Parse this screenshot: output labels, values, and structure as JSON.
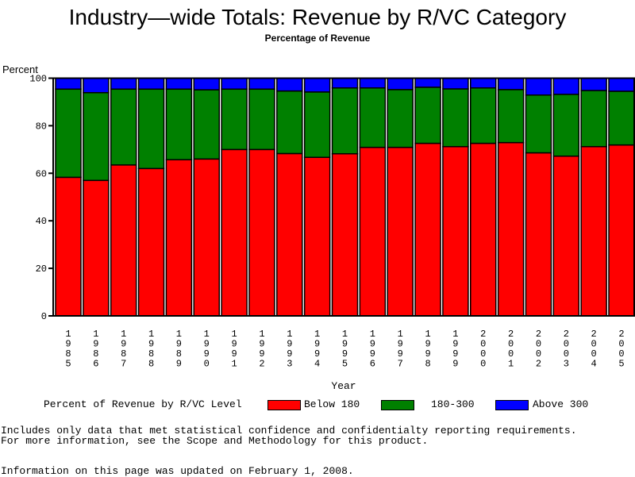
{
  "chart_data": {
    "type": "bar",
    "stacked": true,
    "title": "Industry—wide Totals: Revenue by R/VC Category",
    "subtitle": "Percentage of Revenue",
    "ylabel": "Percent",
    "xlabel": "Year",
    "ylim": [
      0,
      100
    ],
    "yticks": [
      0,
      20,
      40,
      60,
      80,
      100
    ],
    "categories": [
      "1985",
      "1986",
      "1987",
      "1988",
      "1989",
      "1990",
      "1991",
      "1992",
      "1993",
      "1994",
      "1995",
      "1996",
      "1997",
      "1998",
      "1999",
      "2000",
      "2001",
      "2002",
      "2003",
      "2004",
      "2005"
    ],
    "series": [
      {
        "name": "Below 180",
        "color": "#ff0000",
        "values": [
          58.3,
          57.0,
          63.5,
          62.0,
          65.7,
          66.0,
          70.0,
          70.0,
          68.3,
          66.7,
          68.2,
          70.9,
          70.9,
          72.6,
          71.2,
          72.6,
          72.9,
          68.6,
          67.2,
          71.2,
          71.9
        ]
      },
      {
        "name": "180-300",
        "color": "#008000",
        "values": [
          37.1,
          36.9,
          31.9,
          33.4,
          29.7,
          29.1,
          25.4,
          25.4,
          26.3,
          27.5,
          27.7,
          25.0,
          24.3,
          23.6,
          24.3,
          23.3,
          22.3,
          24.3,
          26.0,
          23.6,
          22.6
        ]
      },
      {
        "name": "Above 300",
        "color": "#0000ff",
        "values": [
          4.6,
          6.1,
          4.6,
          4.6,
          4.6,
          4.9,
          4.6,
          4.6,
          5.4,
          5.8,
          4.1,
          4.1,
          4.8,
          3.8,
          4.5,
          4.1,
          4.8,
          7.1,
          6.8,
          5.2,
          5.5
        ]
      }
    ],
    "legend_title": "Percent of Revenue by R/VC Level",
    "legend_position": "bottom"
  },
  "notes": [
    "Includes only data that met statistical confidence and confidentialty reporting requirements.",
    "For more information, see the Scope and Methodology for this product."
  ],
  "updated": "Information on this page was updated on February 1, 2008."
}
